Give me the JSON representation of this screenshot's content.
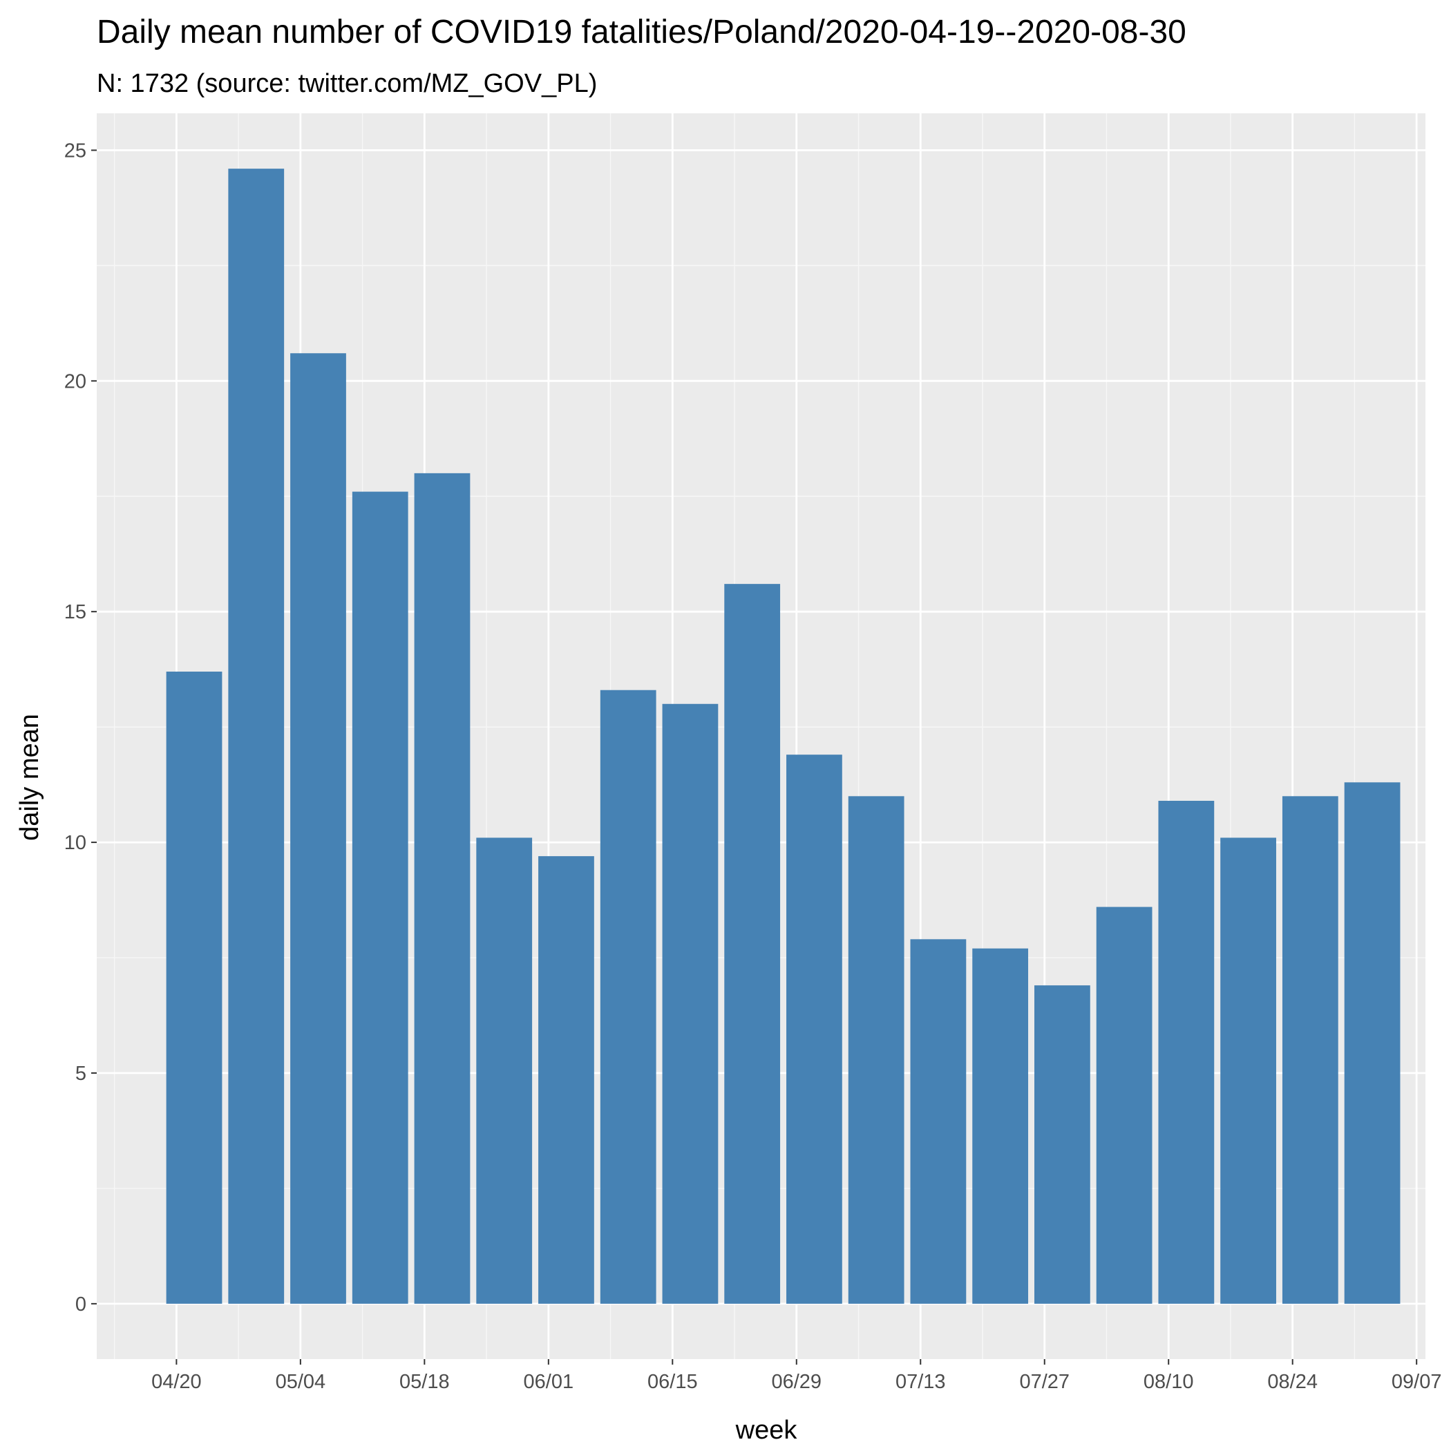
{
  "chart_data": {
    "type": "bar",
    "title": "Daily mean number of COVID19 fatalities/Poland/2020-04-19--2020-08-30",
    "subtitle": "N: 1732 (source: twitter.com/MZ_GOV_PL)",
    "xlabel": "week",
    "ylabel": "daily mean",
    "x_axis": "date",
    "categories": [
      "2020-04-19",
      "2020-04-26",
      "2020-05-03",
      "2020-05-10",
      "2020-05-17",
      "2020-05-24",
      "2020-05-31",
      "2020-06-07",
      "2020-06-14",
      "2020-06-21",
      "2020-06-28",
      "2020-07-05",
      "2020-07-12",
      "2020-07-19",
      "2020-07-26",
      "2020-08-02",
      "2020-08-09",
      "2020-08-16",
      "2020-08-23",
      "2020-08-30"
    ],
    "values": [
      13.7,
      24.6,
      20.6,
      17.6,
      18.0,
      10.1,
      9.7,
      13.3,
      13.0,
      15.6,
      11.9,
      11.0,
      7.9,
      7.7,
      6.9,
      8.6,
      10.9,
      10.1,
      11.0,
      11.3
    ],
    "xlim": [
      "2020-04-11",
      "2020-09-08"
    ],
    "ylim": [
      -1.2,
      25.8
    ],
    "x_ticks": [
      "2020-04-20",
      "2020-05-04",
      "2020-05-18",
      "2020-06-01",
      "2020-06-15",
      "2020-06-29",
      "2020-07-13",
      "2020-07-27",
      "2020-08-10",
      "2020-08-24",
      "2020-09-07"
    ],
    "x_tick_labels": [
      "04/20",
      "05/04",
      "05/18",
      "06/01",
      "06/15",
      "06/29",
      "07/13",
      "07/27",
      "08/10",
      "08/24",
      "09/07"
    ],
    "y_ticks": [
      0,
      5,
      10,
      15,
      20,
      25
    ],
    "y_tick_labels": [
      "0",
      "5",
      "10",
      "15",
      "20",
      "25"
    ],
    "grid": true,
    "legend": "none",
    "colors": {
      "bar": "#4682b4",
      "panel": "#ebebeb",
      "grid_major": "#ffffff",
      "grid_minor": "#f7f7f7",
      "tick_text": "#4d4d4d",
      "tick_line": "#333333"
    }
  }
}
